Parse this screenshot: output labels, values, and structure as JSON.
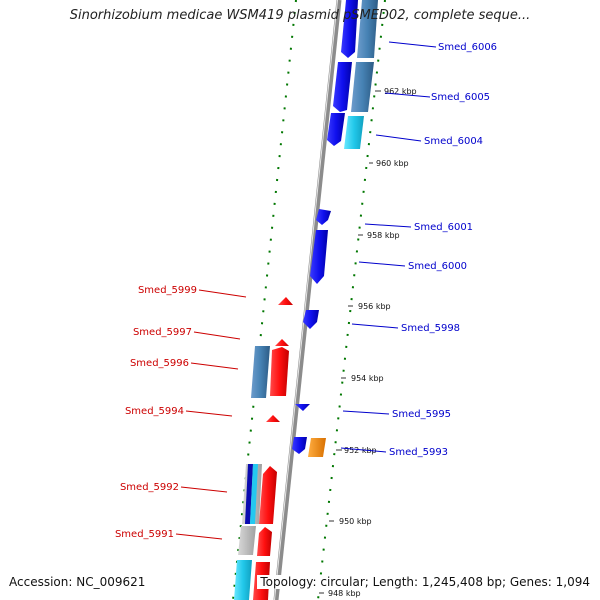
{
  "title": "Sinorhizobium medicae WSM419 plasmid pSMED02, complete seque...",
  "footer": {
    "accession": "Accession: NC_009621",
    "summary": "Topology: circular; Length: 1,245,408 bp; Genes: 1,094"
  },
  "colors": {
    "forward_gene": "#ff1a1a",
    "reverse_gene": "#1414e6",
    "steelblue_gene": "#4682b4",
    "cyan_gene": "#24d0f0",
    "orange_gene": "#ff8c00",
    "gray_gene": "#bfbfbf",
    "backbone": "#8c8c8c",
    "tick": "#007700",
    "forward_label": "#cc0000",
    "reverse_label": "#0000cc"
  },
  "kbp_ticks": [
    "962 kbp",
    "960 kbp",
    "958 kbp",
    "956 kbp",
    "954 kbp",
    "952 kbp",
    "950 kbp",
    "948 kbp"
  ],
  "genes_reverse": [
    "Smed_6006",
    "Smed_6005",
    "Smed_6004",
    "Smed_6001",
    "Smed_6000",
    "Smed_5998",
    "Smed_5995",
    "Smed_5993"
  ],
  "genes_forward": [
    "Smed_5999",
    "Smed_5997",
    "Smed_5996",
    "Smed_5994",
    "Smed_5992",
    "Smed_5991"
  ]
}
